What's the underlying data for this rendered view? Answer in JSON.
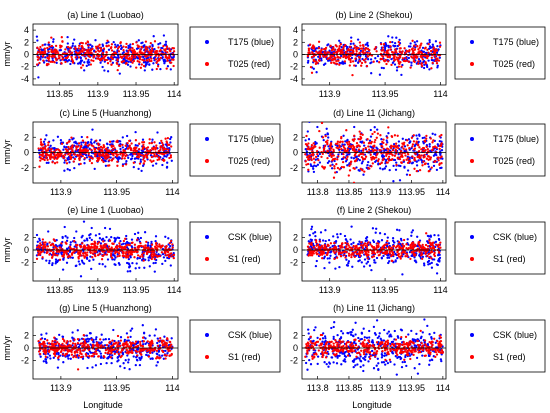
{
  "figure": {
    "y_axis_label": "mm/yr",
    "x_axis_label": "Longitude"
  },
  "colors": {
    "blue": "#0000ff",
    "red": "#ff0000",
    "zero_line": "#000000"
  },
  "chart_data": [
    {
      "type": "scatter",
      "title": "(a) Line 1 (Luobao)",
      "xlim": [
        113.815,
        114.005
      ],
      "ylim": [
        -5,
        5
      ],
      "xticks": [
        113.85,
        113.9,
        113.95,
        114
      ],
      "xtick_labels": [
        "113.85",
        "113.9",
        "113.95",
        "114"
      ],
      "yticks": [
        -4,
        -2,
        0,
        2,
        4
      ],
      "ytick_labels": [
        "-4",
        "-2",
        "0",
        "2",
        "4"
      ],
      "grid": false,
      "legend_position": "right",
      "series": [
        {
          "name": "T175 (blue)",
          "color": "blue",
          "x_range": [
            113.82,
            114.0
          ],
          "approx_spread_mm_yr": 1.2
        },
        {
          "name": "T025 (red)",
          "color": "red",
          "x_range": [
            113.82,
            114.0
          ],
          "approx_spread_mm_yr": 1.0
        }
      ]
    },
    {
      "type": "scatter",
      "title": "(b) Line 2 (Shekou)",
      "xlim": [
        113.875,
        114.005
      ],
      "ylim": [
        -5,
        5
      ],
      "xticks": [
        113.9,
        113.95,
        114
      ],
      "xtick_labels": [
        "113.9",
        "113.95",
        "114"
      ],
      "yticks": [
        -4,
        -2,
        0,
        2,
        4
      ],
      "ytick_labels": [
        "-4",
        "-2",
        "0",
        "2",
        "4"
      ],
      "grid": false,
      "legend_position": "right",
      "series": [
        {
          "name": "T175 (blue)",
          "color": "blue",
          "x_range": [
            113.88,
            114.0
          ],
          "approx_spread_mm_yr": 1.3
        },
        {
          "name": "T025 (red)",
          "color": "red",
          "x_range": [
            113.88,
            114.0
          ],
          "approx_spread_mm_yr": 1.0
        }
      ]
    },
    {
      "type": "scatter",
      "title": "(c) Line 5 (Huanzhong)",
      "xlim": [
        113.875,
        114.005
      ],
      "ylim": [
        -4,
        4
      ],
      "xticks": [
        113.9,
        113.95,
        114
      ],
      "xtick_labels": [
        "113.9",
        "113.95",
        "114"
      ],
      "yticks": [
        -2,
        0,
        2
      ],
      "ytick_labels": [
        "-2",
        "0",
        "2"
      ],
      "grid": false,
      "legend_position": "right",
      "series": [
        {
          "name": "T175 (blue)",
          "color": "blue",
          "x_range": [
            113.88,
            114.0
          ],
          "approx_spread_mm_yr": 1.0
        },
        {
          "name": "T025 (red)",
          "color": "red",
          "x_range": [
            113.88,
            114.0
          ],
          "approx_spread_mm_yr": 0.8
        }
      ]
    },
    {
      "type": "scatter",
      "title": "(d) Line 11 (Jichang)",
      "xlim": [
        113.775,
        114.005
      ],
      "ylim": [
        -4,
        4
      ],
      "xticks": [
        113.8,
        113.85,
        113.9,
        113.95,
        114
      ],
      "xtick_labels": [
        "113.8",
        "113.85",
        "113.9",
        "113.95",
        "114"
      ],
      "yticks": [
        -2,
        0,
        2
      ],
      "ytick_labels": [
        "-2",
        "0",
        "2"
      ],
      "grid": false,
      "legend_position": "right",
      "series": [
        {
          "name": "T175 (blue)",
          "color": "blue",
          "x_range": [
            113.78,
            114.0
          ],
          "approx_spread_mm_yr": 1.5
        },
        {
          "name": "T025 (red)",
          "color": "red",
          "x_range": [
            113.78,
            114.0
          ],
          "approx_spread_mm_yr": 1.3
        }
      ]
    },
    {
      "type": "scatter",
      "title": "(e) Line 1 (Luobao)",
      "xlim": [
        113.815,
        114.005
      ],
      "ylim": [
        -5,
        5
      ],
      "xticks": [
        113.85,
        113.9,
        113.95,
        114
      ],
      "xtick_labels": [
        "113.85",
        "113.9",
        "113.95",
        "114"
      ],
      "yticks": [
        -2,
        0,
        2
      ],
      "ytick_labels": [
        "-2",
        "0",
        "2"
      ],
      "grid": false,
      "legend_position": "right",
      "series": [
        {
          "name": "CSK (blue)",
          "color": "blue",
          "x_range": [
            113.82,
            114.0
          ],
          "approx_spread_mm_yr": 1.6
        },
        {
          "name": "S1 (red)",
          "color": "red",
          "x_range": [
            113.82,
            114.0
          ],
          "approx_spread_mm_yr": 0.7
        }
      ]
    },
    {
      "type": "scatter",
      "title": "(f) Line 2 (Shekou)",
      "xlim": [
        113.875,
        114.005
      ],
      "ylim": [
        -5,
        5
      ],
      "xticks": [
        113.9,
        113.95,
        114
      ],
      "xtick_labels": [
        "113.9",
        "113.95",
        "114"
      ],
      "yticks": [
        -2,
        0,
        2
      ],
      "ytick_labels": [
        "-2",
        "0",
        "2"
      ],
      "grid": false,
      "legend_position": "right",
      "series": [
        {
          "name": "CSK (blue)",
          "color": "blue",
          "x_range": [
            113.88,
            114.0
          ],
          "approx_spread_mm_yr": 1.5
        },
        {
          "name": "S1 (red)",
          "color": "red",
          "x_range": [
            113.88,
            114.0
          ],
          "approx_spread_mm_yr": 0.7
        }
      ]
    },
    {
      "type": "scatter",
      "title": "(g) Line 5 (Huanzhong)",
      "xlim": [
        113.875,
        114.005
      ],
      "ylim": [
        -5,
        5
      ],
      "xticks": [
        113.9,
        113.95,
        114
      ],
      "xtick_labels": [
        "113.9",
        "113.95",
        "114"
      ],
      "yticks": [
        -2,
        0,
        2
      ],
      "ytick_labels": [
        "-2",
        "0",
        "2"
      ],
      "grid": false,
      "legend_position": "right",
      "series": [
        {
          "name": "CSK (blue)",
          "color": "blue",
          "x_range": [
            113.88,
            114.0
          ],
          "approx_spread_mm_yr": 1.4
        },
        {
          "name": "S1 (red)",
          "color": "red",
          "x_range": [
            113.88,
            114.0
          ],
          "approx_spread_mm_yr": 0.8
        }
      ]
    },
    {
      "type": "scatter",
      "title": "(h) Line 11 (Jichang)",
      "xlim": [
        113.775,
        114.005
      ],
      "ylim": [
        -5,
        5
      ],
      "xticks": [
        113.8,
        113.85,
        113.9,
        113.95,
        114
      ],
      "xtick_labels": [
        "113.8",
        "113.85",
        "113.9",
        "113.95",
        "114"
      ],
      "yticks": [
        -2,
        0,
        2
      ],
      "ytick_labels": [
        "-2",
        "0",
        "2"
      ],
      "grid": false,
      "legend_position": "right",
      "series": [
        {
          "name": "CSK (blue)",
          "color": "blue",
          "x_range": [
            113.78,
            114.0
          ],
          "approx_spread_mm_yr": 1.8
        },
        {
          "name": "S1 (red)",
          "color": "red",
          "x_range": [
            113.78,
            114.0
          ],
          "approx_spread_mm_yr": 0.8
        }
      ]
    }
  ]
}
